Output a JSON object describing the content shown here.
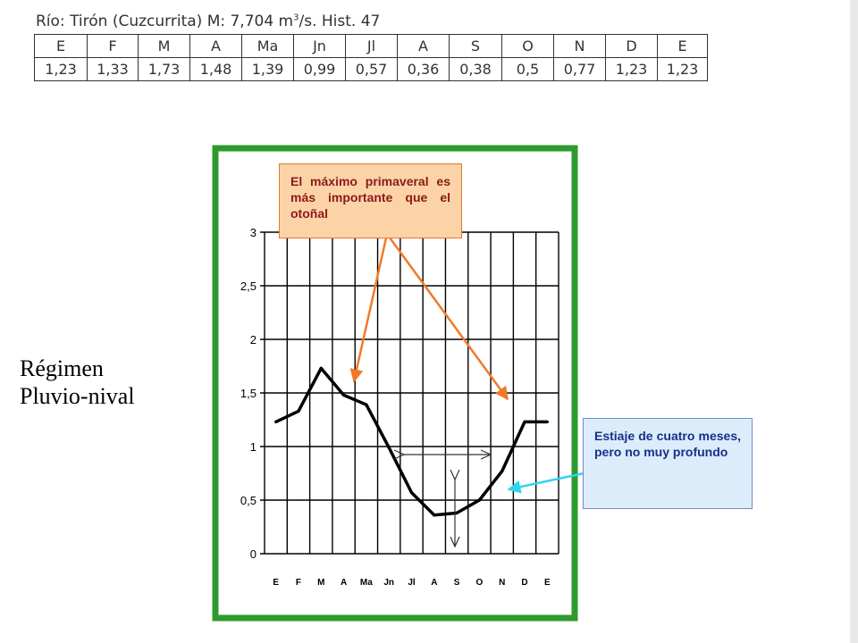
{
  "header": {
    "title_prefix": "Río: Tirón (Cuzcurrita) M: 7,704 m",
    "title_sup": "3",
    "title_suffix": "/s. Hist. 47"
  },
  "table": {
    "months": [
      "E",
      "F",
      "M",
      "A",
      "Ma",
      "Jn",
      "Jl",
      "A",
      "S",
      "O",
      "N",
      "D",
      "E"
    ],
    "values": [
      "1,23",
      "1,33",
      "1,73",
      "1,48",
      "1,39",
      "0,99",
      "0,57",
      "0,36",
      "0,38",
      "0,5",
      "0,77",
      "1,23",
      "1,23"
    ]
  },
  "side_label": {
    "line1": "Régimen",
    "line2": "Pluvio-nival"
  },
  "annotations": {
    "spring_max": "El máximo primaveral es más importante que el otoñal",
    "low_water": "Estiaje de cuatro meses, pero no muy profundo"
  },
  "colors": {
    "frame": "#2e9a2e",
    "line": "#000000",
    "orange_arrow": "#f07a2a",
    "cyan_arrow": "#2fd4ef"
  },
  "chart_data": {
    "type": "line",
    "categories": [
      "E",
      "F",
      "M",
      "A",
      "Ma",
      "Jn",
      "Jl",
      "A",
      "S",
      "O",
      "N",
      "D",
      "E"
    ],
    "series": [
      {
        "values": [
          1.23,
          1.33,
          1.73,
          1.48,
          1.39,
          0.99,
          0.57,
          0.36,
          0.38,
          0.5,
          0.77,
          1.23,
          1.23
        ]
      }
    ],
    "yticks": [
      "0",
      "0,5",
      "1",
      "1,5",
      "2",
      "2,5",
      "3"
    ],
    "ylim": [
      0,
      3
    ],
    "grid": true
  }
}
